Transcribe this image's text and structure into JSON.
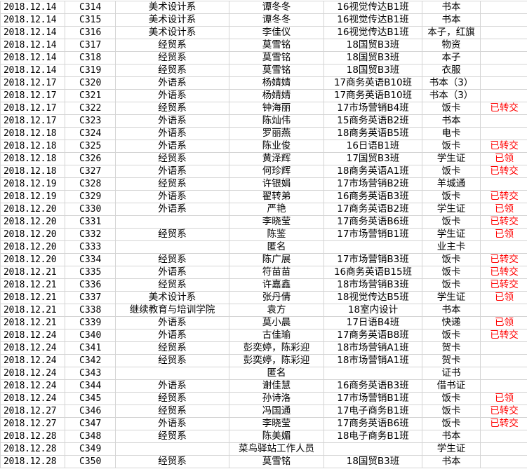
{
  "sheet": {
    "status_color": "#ff0000",
    "rows": [
      [
        "2018.12.14",
        "C314",
        "美术设计系",
        "谭冬冬",
        "16视觉传达B1班",
        "书本",
        ""
      ],
      [
        "2018.12.14",
        "C315",
        "美术设计系",
        "谭冬冬",
        "16视觉传达B1班",
        "书本",
        ""
      ],
      [
        "2018.12.14",
        "C316",
        "美术设计系",
        "李佳仪",
        "16视觉传达B1班",
        "本子，红旗",
        ""
      ],
      [
        "2018.12.14",
        "C317",
        "经贸系",
        "莫雪铭",
        "18国贸B3班",
        "物资",
        ""
      ],
      [
        "2018.12.14",
        "C318",
        "经贸系",
        "莫雪铭",
        "18国贸B3班",
        "本子",
        ""
      ],
      [
        "2018.12.14",
        "C319",
        "经贸系",
        "莫雪铭",
        "18国贸B3班",
        "衣服",
        ""
      ],
      [
        "2018.12.17",
        "C320",
        "外语系",
        "杨婧婧",
        "17商务英语B10班",
        "书本（3）",
        ""
      ],
      [
        "2018.12.17",
        "C321",
        "外语系",
        "杨婧婧",
        "17商务英语B10班",
        "书本（3）",
        ""
      ],
      [
        "2018.12.17",
        "C322",
        "经贸系",
        "钟海丽",
        "17市场营销B4班",
        "饭卡",
        "已转交"
      ],
      [
        "2018.12.17",
        "C323",
        "外语系",
        "陈灿伟",
        "15商务英语B2班",
        "书本",
        ""
      ],
      [
        "2018.12.18",
        "C324",
        "外语系",
        "罗丽燕",
        "18商务英语B5班",
        "电卡",
        ""
      ],
      [
        "2018.12.18",
        "C325",
        "外语系",
        "陈业俊",
        "16日语B1班",
        "饭卡",
        "已转交"
      ],
      [
        "2018.12.18",
        "C326",
        "经贸系",
        "黄泽辉",
        "17国贸B3班",
        "学生证",
        "已领"
      ],
      [
        "2018.12.18",
        "C327",
        "外语系",
        "何珍辉",
        "18商务英语A1班",
        "饭卡",
        "已转交"
      ],
      [
        "2018.12.19",
        "C328",
        "经贸系",
        "许银娟",
        "17市场营销B2班",
        "羊城通",
        ""
      ],
      [
        "2018.12.19",
        "C329",
        "外语系",
        "翟转弟",
        "16商务英语B3班",
        "饭卡",
        "已转交"
      ],
      [
        "2018.12.20",
        "C330",
        "外语系",
        "严艳",
        "17商务英语B2班",
        "学生证",
        "已领"
      ],
      [
        "2018.12.20",
        "C331",
        "",
        "李晓莹",
        "17商务英语B6班",
        "饭卡",
        "已转交"
      ],
      [
        "2018.12.20",
        "C332",
        "经贸系",
        "陈鉴",
        "17市场营销B1班",
        "学生证",
        "已领"
      ],
      [
        "2018.12.20",
        "C333",
        "",
        "匿名",
        "",
        "业主卡",
        ""
      ],
      [
        "2018.12.20",
        "C334",
        "经贸系",
        "陈广展",
        "17市场营销B3班",
        "饭卡",
        "已转交"
      ],
      [
        "2018.12.21",
        "C335",
        "外语系",
        "符苗苗",
        "16商务英语B15班",
        "饭卡",
        "已转交"
      ],
      [
        "2018.12.21",
        "C336",
        "经贸系",
        "许嘉鑫",
        "18市场营销B3班",
        "饭卡",
        "已转交"
      ],
      [
        "2018.12.21",
        "C337",
        "美术设计系",
        "张丹倩",
        "18视觉传达B5班",
        "学生证",
        "已领"
      ],
      [
        "2018.12.21",
        "C338",
        "继续教育与培训学院",
        "袁方",
        "18室内设计",
        "书本",
        ""
      ],
      [
        "2018.12.21",
        "C339",
        "外语系",
        "莫小晨",
        "17日语B4班",
        "快递",
        "已领"
      ],
      [
        "2018.12.24",
        "C340",
        "外语系",
        "古佳瑜",
        "17商务英语B8班",
        "饭卡",
        "已转交"
      ],
      [
        "2018.12.24",
        "C341",
        "经贸系",
        "彭奕婷，陈彩迎",
        "18市场营销A1班",
        "贺卡",
        ""
      ],
      [
        "2018.12.24",
        "C342",
        "经贸系",
        "彭奕婷，陈彩迎",
        "18市场营销A1班",
        "贺卡",
        ""
      ],
      [
        "2018.12.24",
        "C343",
        "",
        "匿名",
        "",
        "证书",
        ""
      ],
      [
        "2018.12.24",
        "C344",
        "外语系",
        "谢佳慧",
        "16商务英语B3班",
        "借书证",
        ""
      ],
      [
        "2018.12.24",
        "C345",
        "经贸系",
        "孙诗洛",
        "17市场营销B1班",
        "饭卡",
        "已领"
      ],
      [
        "2018.12.27",
        "C346",
        "经贸系",
        "冯国通",
        "17电子商务B1班",
        "饭卡",
        "已转交"
      ],
      [
        "2018.12.27",
        "C347",
        "外语系",
        "李晓莹",
        "17商务英语B6班",
        "饭卡",
        "已转交"
      ],
      [
        "2018.12.28",
        "C348",
        "经贸系",
        "陈美媚",
        "18电子商务B1班",
        "书本",
        ""
      ],
      [
        "2018.12.28",
        "C349",
        "",
        "菜鸟驿站工作人员",
        "",
        "学生证",
        ""
      ],
      [
        "2018.12.28",
        "C350",
        "经贸系",
        "莫雪铭",
        "18国贸B3班",
        "书本",
        ""
      ]
    ]
  }
}
